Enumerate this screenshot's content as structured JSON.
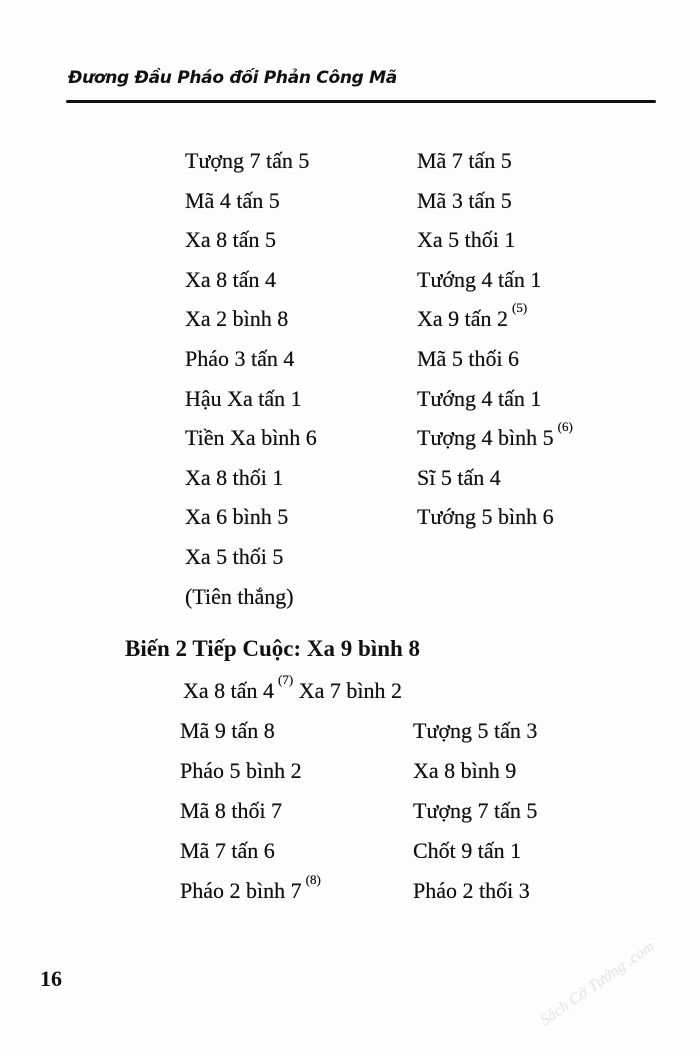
{
  "header": {
    "title": "Đương Đầu Pháo đối Phản Công Mã"
  },
  "block1": {
    "left": [
      "Tượng 7 tấn 5",
      "Mã 4 tấn 5",
      "Xa 8 tấn 5",
      "Xa 8 tấn 4",
      "Xa 2 bình 8",
      "Pháo 3 tấn 4",
      "Hậu Xa tấn 1",
      "Tiền Xa bình 6",
      "Xa 8 thối 1",
      "Xa 6 bình 5",
      "Xa 5 thối 5",
      "(Tiên thắng)"
    ],
    "right": [
      "Mã 7 tấn 5",
      "Mã 3 tấn 5",
      "Xa 5 thối 1",
      "Tướng 4 tấn 1",
      "Xa 9 tấn 2",
      "Mã 5 thối 6",
      "Tướng 4 tấn 1",
      "Tượng 4 bình 5",
      "Sĩ 5 tấn 4",
      "Tướng 5 bình 6"
    ],
    "notes": {
      "r4": "(5)",
      "r7": "(6)"
    }
  },
  "section_heading": "Biến 2 Tiếp Cuộc: Xa 9 bình 8",
  "block2": {
    "first_left": "Xa 8 tấn 4",
    "first_note": "(7)",
    "first_right": "Xa 7 bình 2",
    "left": [
      "Mã 9 tấn 8",
      "Pháo 5 bình 2",
      "Mã 8 thối 7",
      "Mã 7 tấn 6",
      "Pháo 2 bình 7"
    ],
    "right": [
      "Tượng 5 tấn 3",
      "Xa 8 bình 9",
      "Tượng 7 tấn 5",
      "Chốt 9 tấn 1",
      "Pháo 2 thối 3"
    ],
    "last_note": "(8)"
  },
  "page_number": "16",
  "watermark": "Sách Cờ Tướng .com"
}
